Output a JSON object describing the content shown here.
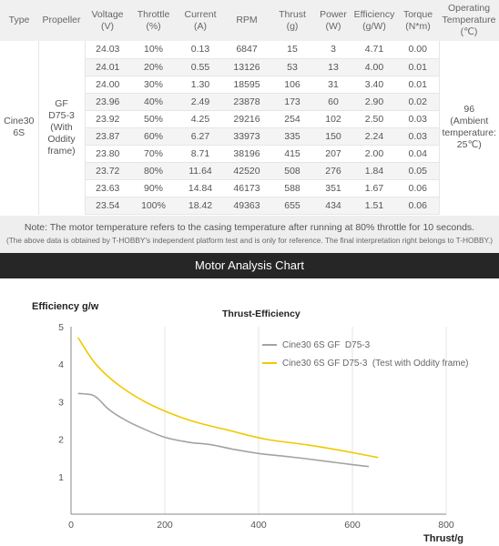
{
  "table": {
    "headers": [
      "Type",
      "Propeller",
      "Voltage\n(V)",
      "Throttle\n(%)",
      "Current\n(A)",
      "RPM",
      "Thrust\n(g)",
      "Power\n(W)",
      "Efficiency\n(g/W)",
      "Torque\n(N*m)",
      "Operating\nTemperature\n(℃)"
    ],
    "type": "Cine30 6S",
    "propeller": "GF\nD75-3\n(With\nOddity\nframe)",
    "temperature": "96\n(Ambient\ntemperature:\n25℃)",
    "rows": [
      [
        "24.03",
        "10%",
        "0.13",
        "6847",
        "15",
        "3",
        "4.71",
        "0.00"
      ],
      [
        "24.01",
        "20%",
        "0.55",
        "13126",
        "53",
        "13",
        "4.00",
        "0.01"
      ],
      [
        "24.00",
        "30%",
        "1.30",
        "18595",
        "106",
        "31",
        "3.40",
        "0.01"
      ],
      [
        "23.96",
        "40%",
        "2.49",
        "23878",
        "173",
        "60",
        "2.90",
        "0.02"
      ],
      [
        "23.92",
        "50%",
        "4.25",
        "29216",
        "254",
        "102",
        "2.50",
        "0.03"
      ],
      [
        "23.87",
        "60%",
        "6.27",
        "33973",
        "335",
        "150",
        "2.24",
        "0.03"
      ],
      [
        "23.80",
        "70%",
        "8.71",
        "38196",
        "415",
        "207",
        "2.00",
        "0.04"
      ],
      [
        "23.72",
        "80%",
        "11.64",
        "42520",
        "508",
        "276",
        "1.84",
        "0.05"
      ],
      [
        "23.63",
        "90%",
        "14.84",
        "46173",
        "588",
        "351",
        "1.67",
        "0.06"
      ],
      [
        "23.54",
        "100%",
        "18.42",
        "49363",
        "655",
        "434",
        "1.51",
        "0.06"
      ]
    ]
  },
  "note": {
    "line1": "Note: The motor temperature refers to the casing temperature after running at 80% throttle for 10 seconds.",
    "line2": "(The above data is obtained by T-HOBBY's independent platform test and is only for reference. The final interpretation right belongs to T-HOBBY.)"
  },
  "banner": {
    "title": "Motor Analysis Chart"
  },
  "chart_data": {
    "type": "line",
    "title": "Thrust-Efficiency",
    "ylabel": "Efficiency g/w",
    "xlabel": "Thrust/g",
    "xlim": [
      0,
      800
    ],
    "ylim": [
      0,
      5
    ],
    "xticks": [
      "0",
      "200",
      "400",
      "600",
      "800"
    ],
    "yticks": [
      "1",
      "2",
      "3",
      "4",
      "5"
    ],
    "grid": "vertical",
    "legend_position": "top-right",
    "series": [
      {
        "name": "Cine30 6S GF  D75-3",
        "color": "#a3a3a3",
        "points": [
          [
            15,
            3.22
          ],
          [
            45,
            3.18
          ],
          [
            60,
            3.05
          ],
          [
            80,
            2.8
          ],
          [
            110,
            2.55
          ],
          [
            150,
            2.3
          ],
          [
            200,
            2.05
          ],
          [
            250,
            1.92
          ],
          [
            300,
            1.85
          ],
          [
            350,
            1.72
          ],
          [
            400,
            1.62
          ],
          [
            450,
            1.55
          ],
          [
            500,
            1.48
          ],
          [
            550,
            1.4
          ],
          [
            600,
            1.32
          ],
          [
            635,
            1.27
          ]
        ]
      },
      {
        "name": "Cine30 6S GF D75-3  (Test with Oddity frame)",
        "color": "#f2c800",
        "points": [
          [
            15,
            4.71
          ],
          [
            53,
            4.0
          ],
          [
            106,
            3.4
          ],
          [
            173,
            2.9
          ],
          [
            254,
            2.5
          ],
          [
            335,
            2.24
          ],
          [
            415,
            2.0
          ],
          [
            508,
            1.84
          ],
          [
            588,
            1.67
          ],
          [
            655,
            1.51
          ]
        ]
      }
    ]
  },
  "colors": {
    "header_bg": "#f0f0f0",
    "note_bg": "#eeeeee",
    "banner_bg": "#262626",
    "axis": "#888888",
    "grid": "#e6e6e6"
  }
}
